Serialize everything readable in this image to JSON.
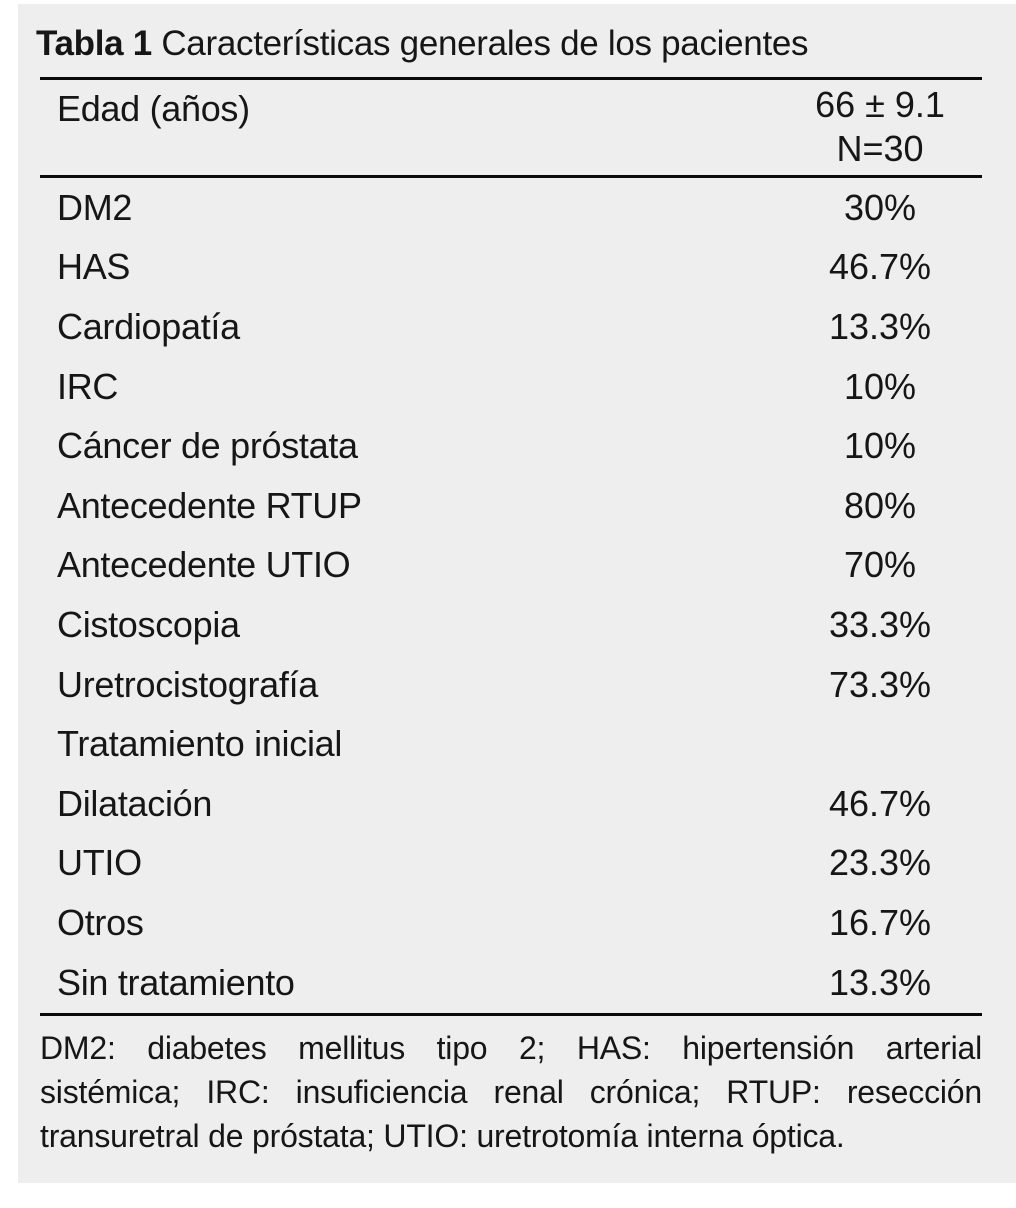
{
  "title": {
    "label_bold": "Tabla 1",
    "label_rest": " Características generales de los pacientes"
  },
  "table": {
    "header": {
      "label": "Edad (años)",
      "value_line1": "66 ± 9.1",
      "value_line2": "N=30"
    },
    "rows": [
      {
        "label": "DM2",
        "value": "30%"
      },
      {
        "label": "HAS",
        "value": "46.7%"
      },
      {
        "label": "Cardiopatía",
        "value": "13.3%"
      },
      {
        "label": "IRC",
        "value": "10%"
      },
      {
        "label": "Cáncer de próstata",
        "value": "10%"
      },
      {
        "label": "Antecedente RTUP",
        "value": "80%"
      },
      {
        "label": "Antecedente UTIO",
        "value": "70%"
      },
      {
        "label": "Cistoscopia",
        "value": "33.3%"
      },
      {
        "label": "Uretrocistografía",
        "value": "73.3%"
      },
      {
        "label": "Tratamiento inicial",
        "value": ""
      },
      {
        "label": "Dilatación",
        "value": "46.7%"
      },
      {
        "label": "UTIO",
        "value": "23.3%"
      },
      {
        "label": "Otros",
        "value": "16.7%"
      },
      {
        "label": "Sin tratamiento",
        "value": "13.3%"
      }
    ]
  },
  "footnote": {
    "line1": "DM2: diabetes mellitus tipo 2; HAS: hipertensión arterial",
    "line2": "sistémica; IRC: insuficiencia renal crónica; RTUP: resección",
    "line3": "transuretral de próstata; UTIO: uretrotomía interna óptica."
  },
  "colors": {
    "panel_background": "#eeeeee",
    "page_background": "#ffffff",
    "text": "#161616",
    "rule": "#0a0a0a"
  }
}
